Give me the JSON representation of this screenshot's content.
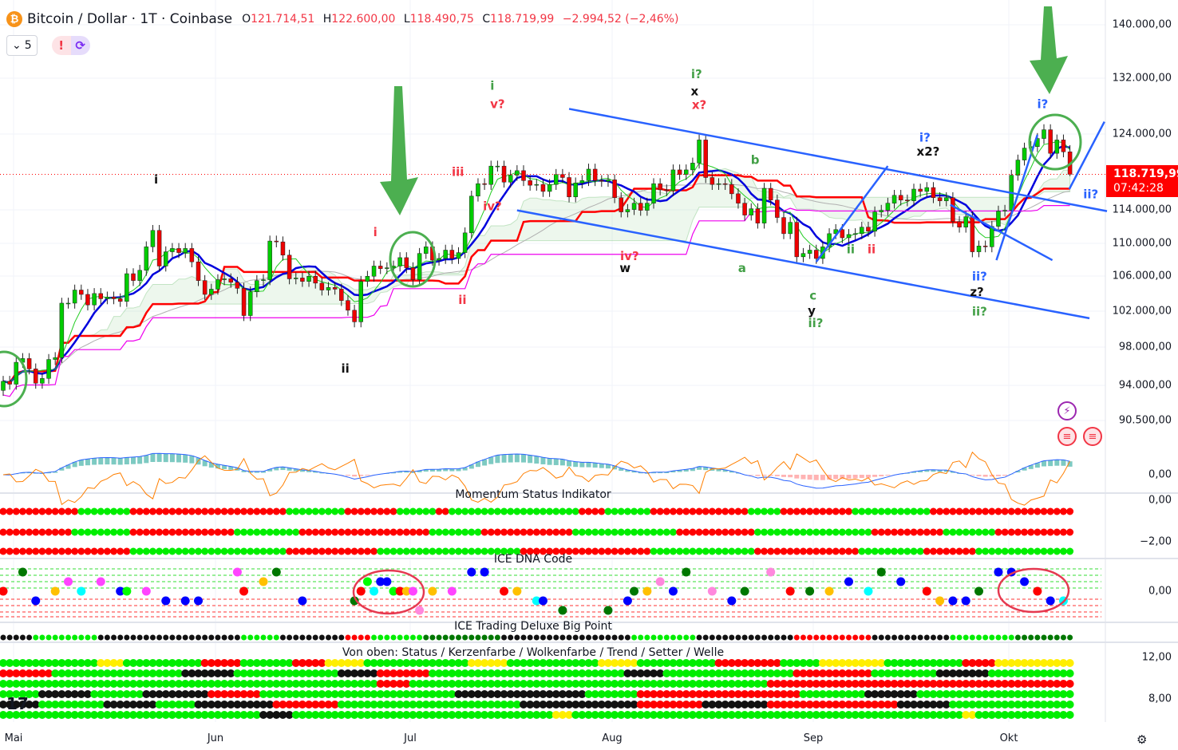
{
  "header": {
    "symbol_icon": "bitcoin-icon",
    "title": "Bitcoin / Dollar · 1T · Coinbase",
    "ohlc": {
      "o_label": "O",
      "o": "121.714,51",
      "h_label": "H",
      "h": "122.600,00",
      "l_label": "L",
      "l": "118.490,75",
      "c_label": "C",
      "c": "118.719,99",
      "change": "−2.994,52 (−2,46%)"
    },
    "indicator_count": "5",
    "alert_icons": [
      "exclamation-icon",
      "refresh-icon"
    ]
  },
  "price_tag": {
    "price": "118.719,99",
    "countdown": "07:42:28",
    "color": "#ff0000"
  },
  "price_axis": [
    "140.000,00",
    "132.000,00",
    "124.000,00",
    "114.000,00",
    "110.000,00",
    "106.000,00",
    "102.000,00",
    "98.000,00",
    "94.000,00",
    "90.500,00",
    "0,00"
  ],
  "momentum_axis": [
    "0,00",
    "−2,00"
  ],
  "dna_axis": [
    "0,00"
  ],
  "bottom_axis": [
    "12,00",
    "8,00"
  ],
  "time_axis": [
    "Mai",
    "Jun",
    "Jul",
    "Aug",
    "Sep",
    "Okt"
  ],
  "panes": {
    "momentum": "Momentum Status Indikator",
    "dna": "ICE DNA Code",
    "bigpoint": "ICE Trading Deluxe Big Point",
    "legend": "Von oben: Status / Kerzenfarbe / Wolkenfarbe / Trend / Setter / Welle"
  },
  "colors": {
    "up": "#089981",
    "up_body": "#00e600",
    "down": "#f23645",
    "channel": "#2962ff",
    "arrow": "#4caf50",
    "red_dot": "#ff0000",
    "green_dot": "#00ee00",
    "dark_green": "#007700",
    "black": "#111111",
    "yellow": "#ffee00"
  },
  "chart_data": {
    "type": "candlestick",
    "scale": "log",
    "ylim": [
      90000,
      142000
    ],
    "last": {
      "open": 121714.51,
      "high": 122600.0,
      "low": 118490.75,
      "close": 118719.99
    },
    "closes": [
      94500,
      94200,
      96500,
      96900,
      95800,
      94300,
      94800,
      96800,
      97000,
      103000,
      103000,
      104500,
      104000,
      102800,
      104100,
      103500,
      103700,
      103500,
      103200,
      106400,
      105600,
      106800,
      109600,
      111600,
      107300,
      109000,
      109400,
      108900,
      109400,
      107800,
      105600,
      104000,
      104600,
      105700,
      105800,
      105400,
      104700,
      101600,
      104300,
      105600,
      105700,
      110300,
      110200,
      108600,
      105800,
      105900,
      105500,
      106100,
      105300,
      104500,
      104800,
      104600,
      103300,
      102200,
      100900,
      105500,
      106100,
      107300,
      107000,
      107100,
      107300,
      108300,
      107100,
      105700,
      108800,
      109600,
      108000,
      108200,
      109200,
      108200,
      108900,
      111300,
      115900,
      117500,
      117400,
      119800,
      119800,
      117700,
      118600,
      119200,
      117900,
      117300,
      117400,
      116500,
      117400,
      118700,
      118300,
      115800,
      117600,
      117900,
      119400,
      117900,
      117800,
      118000,
      115700,
      113900,
      114200,
      115000,
      114100,
      115000,
      117500,
      116700,
      116600,
      119300,
      118700,
      119300,
      120200,
      123300,
      118300,
      117400,
      117500,
      117400,
      116200,
      115000,
      113500,
      114300,
      112500,
      116900,
      115400,
      113200,
      111200,
      112600,
      108400,
      108800,
      109200,
      108200,
      109600,
      111200,
      111700,
      110700,
      111100,
      111200,
      112000,
      111500,
      113900,
      114100,
      115000,
      116000,
      115400,
      115300,
      116800,
      116500,
      117000,
      115700,
      115300,
      115700,
      112700,
      112000,
      113300,
      109000,
      109700,
      109600,
      112100,
      114000,
      114100,
      118600,
      120600,
      122200,
      122400,
      123500,
      124700,
      121500,
      123300,
      121700,
      118720
    ],
    "wave_labels": [
      {
        "text": "i",
        "day": 23.5,
        "price": 117500,
        "color": "#111"
      },
      {
        "text": "ii",
        "day": 52.6,
        "price": 95400,
        "color": "#111"
      },
      {
        "text": "i",
        "day": 57.2,
        "price": 110900,
        "color": "#f23645"
      },
      {
        "text": "ii",
        "day": 70.6,
        "price": 102900,
        "color": "#f23645"
      },
      {
        "text": "iii",
        "day": 69.9,
        "price": 118500,
        "color": "#f23645"
      },
      {
        "text": "iv?",
        "day": 75.2,
        "price": 114100,
        "color": "#f23645"
      },
      {
        "text": "i",
        "day": 75.2,
        "price": 130300,
        "color": "#43a047"
      },
      {
        "text": "v?",
        "day": 76,
        "price": 127700,
        "color": "#f23645"
      },
      {
        "text": "iv?",
        "day": 96.3,
        "price": 108000,
        "color": "#f23645"
      },
      {
        "text": "w",
        "day": 95.6,
        "price": 106600,
        "color": "#111"
      },
      {
        "text": "i?",
        "day": 106.6,
        "price": 132000,
        "color": "#43a047"
      },
      {
        "text": "x",
        "day": 106.3,
        "price": 129500,
        "color": "#111"
      },
      {
        "text": "x?",
        "day": 107,
        "price": 127600,
        "color": "#f23645"
      },
      {
        "text": "b",
        "day": 115.6,
        "price": 120100,
        "color": "#43a047"
      },
      {
        "text": "a",
        "day": 113.6,
        "price": 106600,
        "color": "#43a047"
      },
      {
        "text": "c",
        "day": 124.5,
        "price": 103400,
        "color": "#43a047"
      },
      {
        "text": "y",
        "day": 124.3,
        "price": 101700,
        "color": "#111"
      },
      {
        "text": "ii?",
        "day": 124.9,
        "price": 100300,
        "color": "#43a047"
      },
      {
        "text": "ii",
        "day": 130.3,
        "price": 108800,
        "color": "#43a047"
      },
      {
        "text": "ii",
        "day": 133.5,
        "price": 108800,
        "color": "#f23645"
      },
      {
        "text": "i?",
        "day": 141.7,
        "price": 123100,
        "color": "#2962ff"
      },
      {
        "text": "x2?",
        "day": 142.2,
        "price": 121200,
        "color": "#111"
      },
      {
        "text": "ii?",
        "day": 150.1,
        "price": 105600,
        "color": "#2962ff"
      },
      {
        "text": "z?",
        "day": 149.7,
        "price": 103800,
        "color": "#111"
      },
      {
        "text": "ii?",
        "day": 150.1,
        "price": 101600,
        "color": "#43a047"
      },
      {
        "text": "i?",
        "day": 159.8,
        "price": 127700,
        "color": "#2962ff"
      },
      {
        "text": "ii?",
        "day": 167.2,
        "price": 115600,
        "color": "#2962ff"
      }
    ],
    "trend_lines": [
      {
        "from": [
          87,
          127600
        ],
        "to": [
          169.7,
          114000
        ]
      },
      {
        "from": [
          79,
          114100
        ],
        "to": [
          167,
          101300
        ]
      },
      {
        "from": [
          125,
          107800
        ],
        "to": [
          136,
          119800
        ]
      },
      {
        "from": [
          145.6,
          114800
        ],
        "to": [
          161.3,
          108000
        ]
      },
      {
        "from": [
          152.7,
          108000
        ],
        "to": [
          159,
          124000
        ]
      },
      {
        "from": [
          163.9,
          116800
        ],
        "to": [
          169.3,
          125800
        ]
      }
    ],
    "momentum_rows": [
      [
        [
          "r",
          12
        ],
        [
          "g",
          8
        ],
        [
          "r",
          24
        ],
        [
          "g",
          9
        ],
        [
          "r",
          8
        ],
        [
          "g",
          6
        ],
        [
          "r",
          2
        ],
        [
          "g",
          20
        ],
        [
          "r",
          4
        ],
        [
          "g",
          7
        ],
        [
          "r",
          15
        ],
        [
          "g",
          5
        ],
        [
          "r",
          11
        ],
        [
          "g",
          12
        ],
        [
          "r",
          22
        ]
      ],
      [
        [
          "r",
          11
        ],
        [
          "g",
          9
        ],
        [
          "r",
          16
        ],
        [
          "g",
          10
        ],
        [
          "r",
          20
        ],
        [
          "g",
          8
        ],
        [
          "r",
          14
        ],
        [
          "g",
          16
        ],
        [
          "r",
          12
        ],
        [
          "g",
          18
        ],
        [
          "r",
          11
        ],
        [
          "g",
          8
        ],
        [
          "r",
          12
        ]
      ],
      [
        [
          "r",
          20
        ],
        [
          "g",
          24
        ],
        [
          "r",
          14
        ],
        [
          "g",
          22
        ],
        [
          "r",
          20
        ],
        [
          "g",
          16
        ],
        [
          "r",
          16
        ],
        [
          "g",
          10
        ],
        [
          "r",
          8
        ],
        [
          "g",
          15
        ]
      ]
    ],
    "bigpoint_row": [
      [
        "k",
        5
      ],
      [
        "g",
        10
      ],
      [
        "k",
        22
      ],
      [
        "g",
        6
      ],
      [
        "k",
        10
      ],
      [
        "r",
        4
      ],
      [
        "g",
        8
      ],
      [
        "G",
        12
      ],
      [
        "k",
        20
      ],
      [
        "g",
        10
      ],
      [
        "k",
        15
      ],
      [
        "r",
        12
      ],
      [
        "k",
        12
      ],
      [
        "g",
        10
      ],
      [
        "G",
        9
      ]
    ],
    "status_rows": [
      [
        [
          "g",
          15
        ],
        [
          "y",
          4
        ],
        [
          "g",
          12
        ],
        [
          "r",
          6
        ],
        [
          "g",
          8
        ],
        [
          "r",
          5
        ],
        [
          "y",
          6
        ],
        [
          "g",
          16
        ],
        [
          "y",
          6
        ],
        [
          "g",
          14
        ],
        [
          "y",
          6
        ],
        [
          "g",
          12
        ],
        [
          "r",
          10
        ],
        [
          "g",
          6
        ],
        [
          "y",
          10
        ],
        [
          "g",
          12
        ],
        [
          "r",
          5
        ],
        [
          "y",
          12
        ]
      ],
      [
        [
          "r",
          8
        ],
        [
          "g",
          20
        ],
        [
          "k",
          8
        ],
        [
          "g",
          16
        ],
        [
          "k",
          6
        ],
        [
          "r",
          8
        ],
        [
          "g",
          30
        ],
        [
          "k",
          6
        ],
        [
          "g",
          20
        ],
        [
          "r",
          12
        ],
        [
          "g",
          10
        ],
        [
          "k",
          8
        ],
        [
          "g",
          13
        ]
      ],
      [
        [
          "g",
          58
        ],
        [
          "r",
          5
        ],
        [
          "g",
          55
        ],
        [
          "r",
          47
        ]
      ],
      [
        [
          "g",
          6
        ],
        [
          "k",
          8
        ],
        [
          "g",
          8
        ],
        [
          "k",
          10
        ],
        [
          "r",
          8
        ],
        [
          "g",
          30
        ],
        [
          "k",
          20
        ],
        [
          "g",
          8
        ],
        [
          "r",
          25
        ],
        [
          "g",
          10
        ],
        [
          "k",
          8
        ],
        [
          "g",
          24
        ]
      ],
      [
        [
          "k",
          6
        ],
        [
          "g",
          10
        ],
        [
          "k",
          8
        ],
        [
          "g",
          6
        ],
        [
          "k",
          12
        ],
        [
          "r",
          10
        ],
        [
          "g",
          28
        ],
        [
          "k",
          18
        ],
        [
          "r",
          10
        ],
        [
          "k",
          10
        ],
        [
          "r",
          20
        ],
        [
          "k",
          8
        ],
        [
          "g",
          19
        ]
      ],
      [
        [
          "g",
          40
        ],
        [
          "k",
          5
        ],
        [
          "g",
          40
        ],
        [
          "y",
          3
        ],
        [
          "g",
          60
        ],
        [
          "y",
          2
        ],
        [
          "g",
          15
        ]
      ]
    ],
    "dna_points": [
      [
        0,
        0,
        "#ff0000"
      ],
      [
        3,
        2,
        "#007700"
      ],
      [
        5,
        -1,
        "#0000ff"
      ],
      [
        8,
        0,
        "#ffc000"
      ],
      [
        10,
        1,
        "#ff44ff"
      ],
      [
        12,
        0,
        "#00ffff"
      ],
      [
        15,
        1,
        "#ff44ff"
      ],
      [
        18,
        0,
        "#0000ff"
      ],
      [
        19,
        0,
        "#00ff00"
      ],
      [
        22,
        0,
        "#ff44ff"
      ],
      [
        25,
        -1,
        "#0000ff"
      ],
      [
        28,
        -1,
        "#0000ff"
      ],
      [
        30,
        -1,
        "#0000ff"
      ],
      [
        36,
        2,
        "#ff44ff"
      ],
      [
        37,
        0,
        "#ff0000"
      ],
      [
        40,
        1,
        "#ffc000"
      ],
      [
        42,
        2,
        "#007700"
      ],
      [
        46,
        -1,
        "#0000ff"
      ],
      [
        54,
        -1,
        "#007700"
      ],
      [
        55,
        0,
        "#ff0000"
      ],
      [
        56,
        1,
        "#00ff00"
      ],
      [
        57,
        0,
        "#00ffff"
      ],
      [
        58,
        1,
        "#0000ff"
      ],
      [
        59,
        1,
        "#0000ff"
      ],
      [
        60,
        0,
        "#00ff00"
      ],
      [
        61,
        0,
        "#ff0000"
      ],
      [
        62,
        0,
        "#ffc000"
      ],
      [
        63,
        0,
        "#ff44ff"
      ],
      [
        64,
        -2,
        "#ff88dd"
      ],
      [
        66,
        0,
        "#ffc000"
      ],
      [
        69,
        0,
        "#ff44ff"
      ],
      [
        72,
        2,
        "#0000ff"
      ],
      [
        74,
        2,
        "#0000ff"
      ],
      [
        77,
        0,
        "#ff0000"
      ],
      [
        79,
        0,
        "#ffc000"
      ],
      [
        82,
        -1,
        "#00ffff"
      ],
      [
        83,
        -1,
        "#0000ff"
      ],
      [
        86,
        -2,
        "#007700"
      ],
      [
        93,
        -2,
        "#007700"
      ],
      [
        96,
        -1,
        "#0000ff"
      ],
      [
        97,
        0,
        "#007700"
      ],
      [
        99,
        0,
        "#ffc000"
      ],
      [
        101,
        1,
        "#ff88dd"
      ],
      [
        103,
        0,
        "#0000ff"
      ],
      [
        105,
        2,
        "#007700"
      ],
      [
        109,
        0,
        "#ff88dd"
      ],
      [
        112,
        -1,
        "#0000ff"
      ],
      [
        114,
        0,
        "#007700"
      ],
      [
        118,
        2,
        "#ff88dd"
      ],
      [
        121,
        0,
        "#ff0000"
      ],
      [
        124,
        0,
        "#007700"
      ],
      [
        127,
        0,
        "#ffc000"
      ],
      [
        130,
        1,
        "#0000ff"
      ],
      [
        133,
        0,
        "#00ffff"
      ],
      [
        135,
        2,
        "#007700"
      ],
      [
        138,
        1,
        "#0000ff"
      ],
      [
        142,
        0,
        "#ff0000"
      ],
      [
        144,
        -1,
        "#ffc000"
      ],
      [
        146,
        -1,
        "#0000ff"
      ],
      [
        148,
        -1,
        "#0000ff"
      ],
      [
        150,
        0,
        "#007700"
      ],
      [
        153,
        2,
        "#0000ff"
      ],
      [
        155,
        2,
        "#0000ff"
      ],
      [
        157,
        1,
        "#0000ff"
      ],
      [
        159,
        0,
        "#ff0000"
      ],
      [
        161,
        -1,
        "#0000ff"
      ],
      [
        163,
        -1,
        "#00ffff"
      ]
    ]
  }
}
